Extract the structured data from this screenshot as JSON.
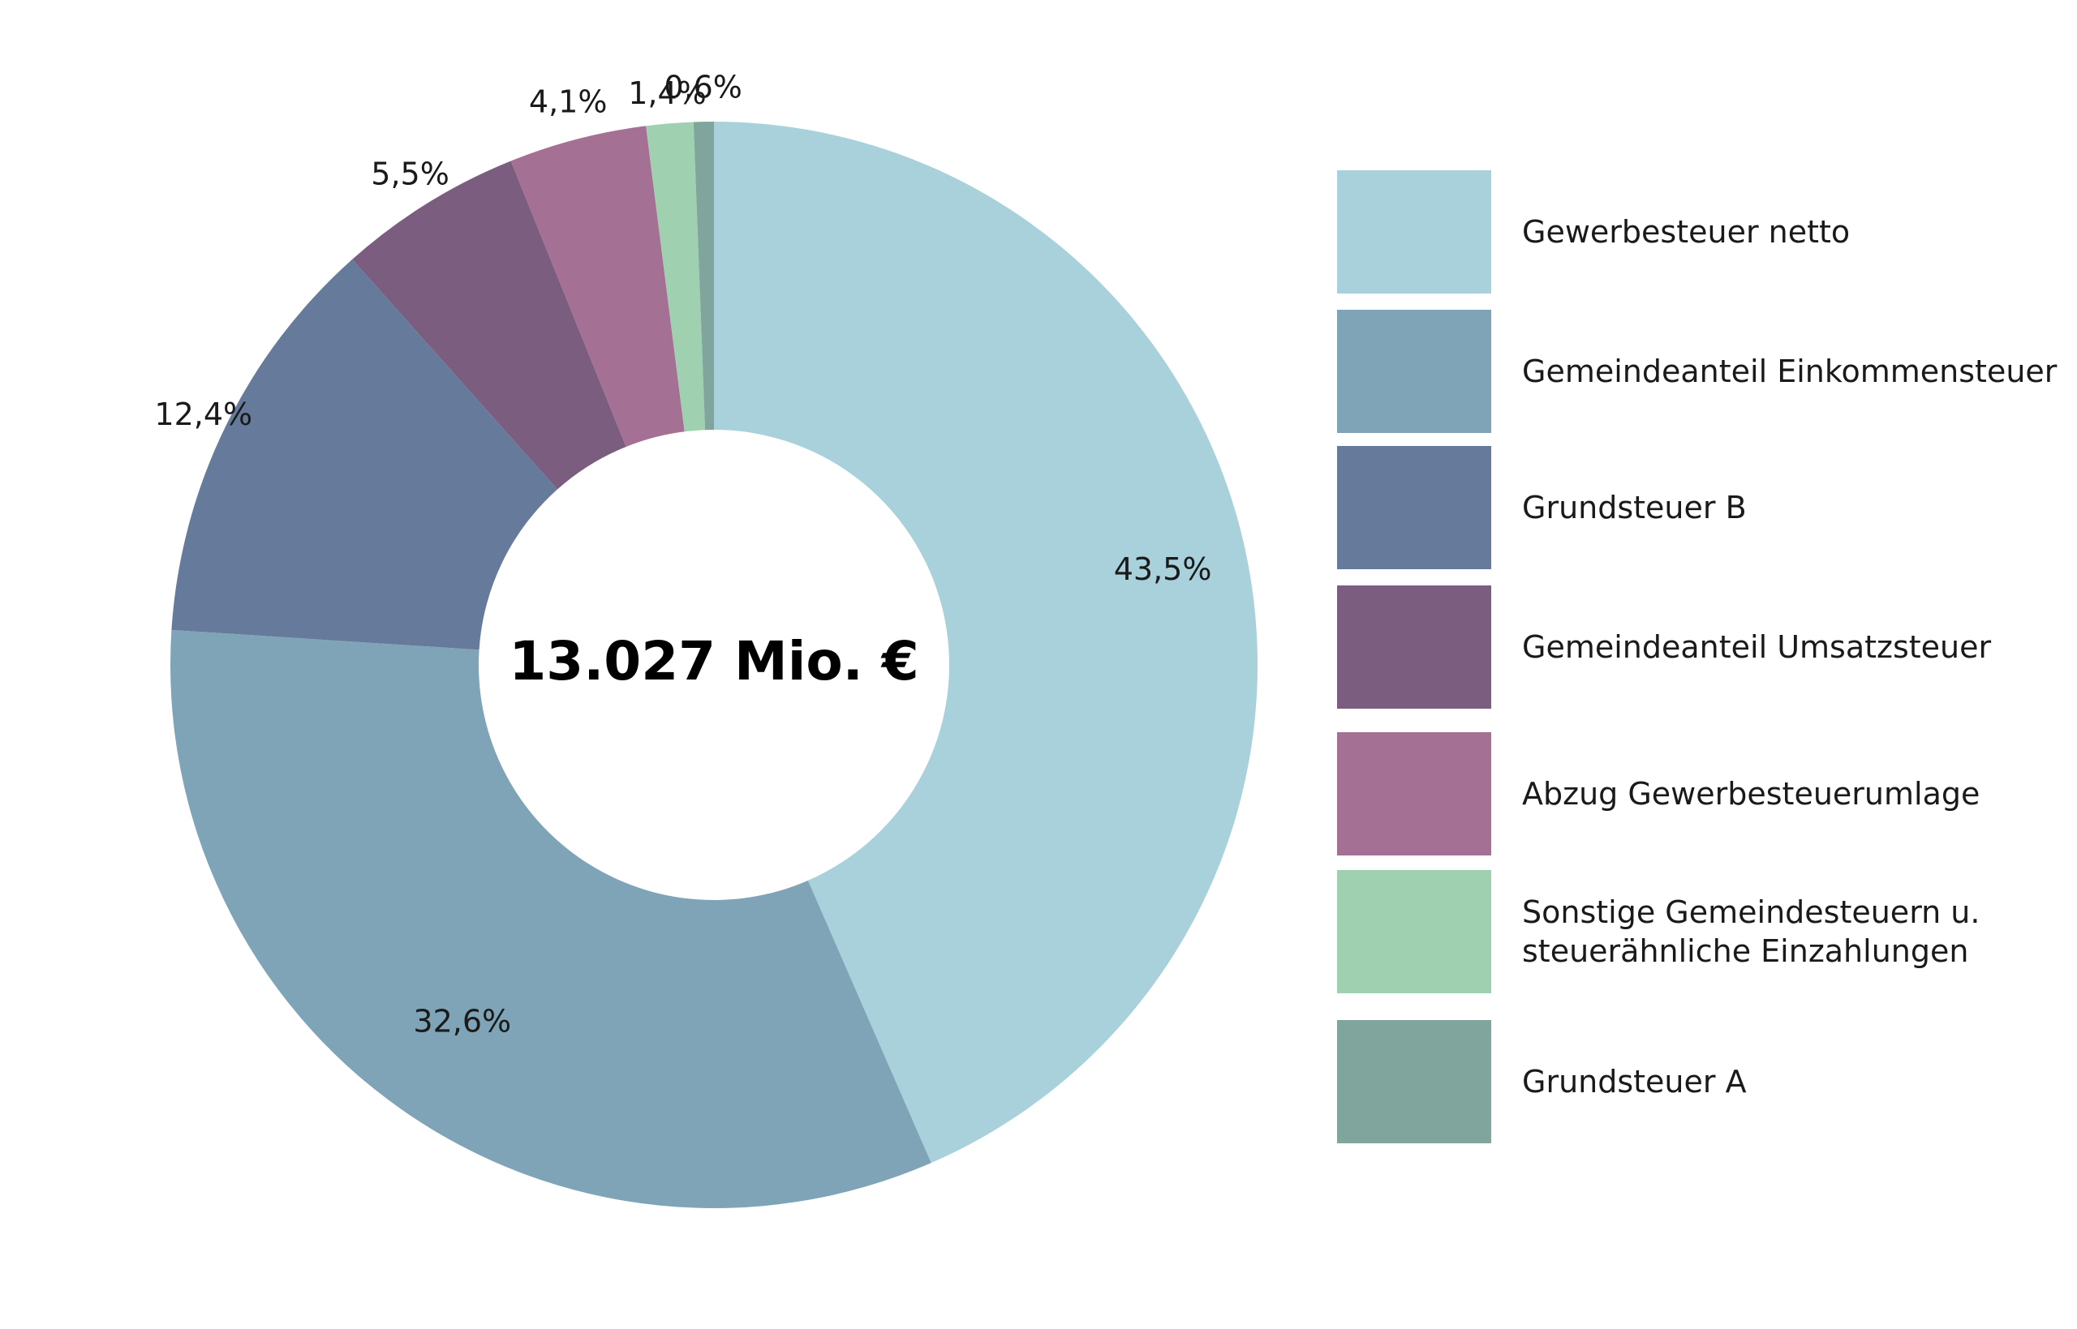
{
  "chart_data": {
    "type": "pie",
    "center_label": "13.027 Mio. €",
    "legend_position": "right",
    "series": [
      {
        "name": "Gewerbesteuer netto",
        "value": 43.5,
        "label": "43,5%",
        "color": "#a8d1dc"
      },
      {
        "name": "Gemeindeanteil Einkommensteuer",
        "value": 32.6,
        "label": "32,6%",
        "color": "#7fa4b7"
      },
      {
        "name": "Grundsteuer B",
        "value": 12.4,
        "label": "12,4%",
        "color": "#667b9b"
      },
      {
        "name": "Gemeindeanteil Umsatzsteuer",
        "value": 5.5,
        "label": "5,5%",
        "color": "#7b5e7f"
      },
      {
        "name": "Abzug Gewerbesteuerumlage",
        "value": 4.1,
        "label": "4,1%",
        "color": "#a47094"
      },
      {
        "name": "Sonstige Gemeindesteuern u.\nsteuerähnliche Einzahlungen",
        "value": 1.4,
        "label": "1,4%",
        "color": "#9fd0b0"
      },
      {
        "name": "Grundsteuer A",
        "value": 0.6,
        "label": "0,6%",
        "color": "#80a59c"
      }
    ]
  }
}
